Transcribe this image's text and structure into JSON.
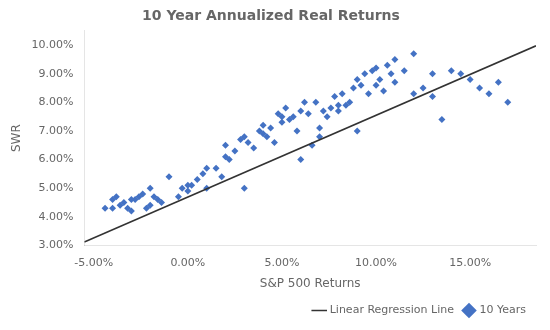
{
  "chart_data": {
    "type": "scatter",
    "title": "10 Year Annualized Real Returns",
    "xlabel": "S&P 500 Returns",
    "ylabel": "SWR",
    "xlim": [
      -0.055,
      0.185
    ],
    "ylim": [
      0.03,
      0.105
    ],
    "xticks": [
      {
        "value": -0.05,
        "label": "-5.00%"
      },
      {
        "value": 0.0,
        "label": "0.00%"
      },
      {
        "value": 0.05,
        "label": "5.00%"
      },
      {
        "value": 0.1,
        "label": "10.00%"
      },
      {
        "value": 0.15,
        "label": "15.00%"
      }
    ],
    "yticks": [
      {
        "value": 0.03,
        "label": "3.00%"
      },
      {
        "value": 0.04,
        "label": "4.00%"
      },
      {
        "value": 0.05,
        "label": "5.00%"
      },
      {
        "value": 0.06,
        "label": "6.00%"
      },
      {
        "value": 0.07,
        "label": "7.00%"
      },
      {
        "value": 0.08,
        "label": "8.00%"
      },
      {
        "value": 0.09,
        "label": "9.00%"
      },
      {
        "value": 0.1,
        "label": "10.00%"
      }
    ],
    "grid": false,
    "legend": "lower right",
    "series": [
      {
        "name": "10 Years",
        "type": "scatter",
        "marker": "diamond",
        "color": "#4472C4",
        "x": [
          -0.044,
          -0.04,
          -0.038,
          -0.036,
          -0.034,
          -0.032,
          -0.03,
          -0.028,
          -0.026,
          -0.024,
          -0.022,
          -0.02,
          -0.018,
          -0.016,
          -0.014,
          -0.005,
          -0.003,
          0.0,
          0.002,
          0.005,
          0.008,
          0.01,
          0.015,
          0.018,
          0.02,
          0.022,
          0.025,
          0.028,
          0.03,
          0.032,
          0.035,
          0.038,
          0.04,
          0.042,
          0.044,
          0.046,
          0.048,
          0.05,
          0.052,
          0.054,
          0.056,
          0.058,
          0.06,
          0.062,
          0.064,
          0.066,
          0.068,
          0.07,
          0.072,
          0.074,
          0.076,
          0.078,
          0.08,
          0.082,
          0.084,
          0.086,
          0.088,
          0.09,
          0.092,
          0.094,
          0.096,
          0.098,
          0.1,
          0.102,
          0.104,
          0.106,
          0.108,
          0.11,
          0.115,
          0.12,
          0.125,
          0.13,
          0.135,
          0.14,
          0.145,
          0.15,
          0.155,
          0.16,
          0.165,
          0.17,
          -0.04,
          -0.03,
          -0.02,
          -0.01,
          0.0,
          0.01,
          0.02,
          0.03,
          0.04,
          0.05,
          0.06,
          0.07,
          0.08,
          0.09,
          0.1,
          0.11,
          0.12,
          0.13
        ],
        "values": [
          0.043,
          0.046,
          0.047,
          0.044,
          0.045,
          0.043,
          0.042,
          0.046,
          0.047,
          0.048,
          0.043,
          0.044,
          0.047,
          0.046,
          0.045,
          0.047,
          0.05,
          0.049,
          0.051,
          0.053,
          0.055,
          0.05,
          0.057,
          0.054,
          0.065,
          0.06,
          0.063,
          0.067,
          0.068,
          0.066,
          0.064,
          0.07,
          0.072,
          0.068,
          0.071,
          0.066,
          0.076,
          0.075,
          0.078,
          0.074,
          0.075,
          0.07,
          0.077,
          0.08,
          0.076,
          0.065,
          0.08,
          0.068,
          0.077,
          0.075,
          0.078,
          0.082,
          0.079,
          0.083,
          0.079,
          0.08,
          0.085,
          0.088,
          0.086,
          0.09,
          0.083,
          0.091,
          0.092,
          0.088,
          0.084,
          0.093,
          0.09,
          0.087,
          0.091,
          0.083,
          0.085,
          0.09,
          0.074,
          0.091,
          0.09,
          0.088,
          0.085,
          0.083,
          0.087,
          0.08,
          0.043,
          0.046,
          0.05,
          0.054,
          0.051,
          0.057,
          0.061,
          0.05,
          0.069,
          0.073,
          0.06,
          0.071,
          0.077,
          0.07,
          0.086,
          0.095,
          0.097,
          0.082
        ]
      },
      {
        "name": "Linear Regression Line",
        "type": "line",
        "line_style": "solid",
        "color": "#333333",
        "x": [
          -0.055,
          0.185
        ],
        "values": [
          0.0311865,
          0.0997545
        ]
      }
    ]
  }
}
